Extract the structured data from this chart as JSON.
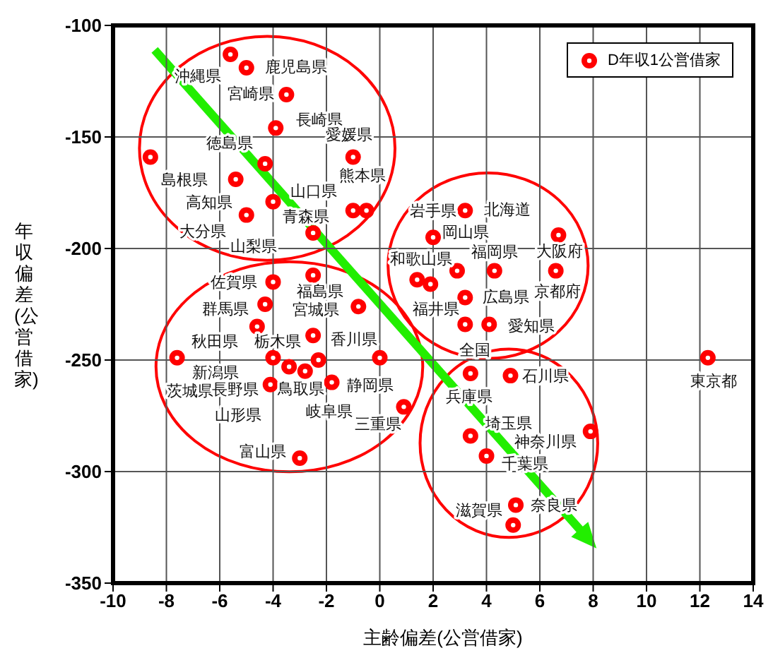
{
  "chart_data": {
    "type": "scatter",
    "xlabel": "主齢偏差(公営借家)",
    "ylabel": "年収偏差(公営借家)",
    "xlim": [
      -10,
      14
    ],
    "xticks": [
      -10,
      -8,
      -6,
      -4,
      -2,
      0,
      2,
      4,
      6,
      8,
      10,
      12,
      14
    ],
    "ylim": [
      -350,
      -100
    ],
    "yticks": [
      -350,
      -300,
      -250,
      -200,
      -150,
      -100
    ],
    "grid": true,
    "legend": "top right",
    "marker": "circle",
    "series": [
      {
        "name": "D年収1公営借家",
        "color": "#ff0000",
        "x": [
          -5.6,
          -5.0,
          -3.5,
          -3.9,
          -1.0,
          -4.3,
          -8.6,
          -5.4,
          -1.0,
          -0.5,
          -4.0,
          -5.0,
          -2.5,
          -4.0,
          -2.5,
          -4.3,
          -0.8,
          -4.6,
          -2.5,
          -7.6,
          -4.0,
          -2.3,
          0.0,
          -3.4,
          -2.8,
          -4.1,
          -1.8,
          0.9,
          -3.0,
          3.2,
          2.0,
          6.7,
          2.9,
          4.3,
          6.6,
          1.4,
          1.9,
          3.2,
          3.2,
          4.1,
          12.3,
          3.4,
          4.9,
          3.4,
          7.9,
          4.0,
          5.1,
          5.0
        ],
        "values": [
          -113,
          -119,
          -131,
          -146,
          -159,
          -162,
          -159,
          -169,
          -183,
          -183,
          -179,
          -185,
          -193,
          -215,
          -212,
          -225,
          -226,
          -235,
          -239,
          -249,
          -249,
          -250,
          -249,
          -253,
          -255,
          -261,
          -260,
          -271,
          -294,
          -183,
          -195,
          -194,
          -210,
          -210,
          -210,
          -214,
          -216,
          -222,
          -234,
          -234,
          -249,
          -256,
          -257,
          -284,
          -282,
          -293,
          -315,
          -324
        ]
      }
    ],
    "annotations": [
      {
        "text": "沖縄県",
        "x": -5.6,
        "y": -113
      },
      {
        "text": "鹿児島県",
        "x": -5.0,
        "y": -119
      },
      {
        "text": "宮崎県",
        "x": -3.5,
        "y": -131
      },
      {
        "text": "長崎県",
        "x": -3.9,
        "y": -146
      },
      {
        "text": "愛媛県",
        "x": -1.0,
        "y": -159
      },
      {
        "text": "徳島県",
        "x": -4.3,
        "y": -162
      },
      {
        "text": "島根県",
        "x": -8.6,
        "y": -159
      },
      {
        "text": "高知県",
        "x": -5.4,
        "y": -169
      },
      {
        "text": "山口県",
        "x": -1.0,
        "y": -183
      },
      {
        "text": "熊本県",
        "x": -0.5,
        "y": -183
      },
      {
        "text": "青森県",
        "x": -4.0,
        "y": -179
      },
      {
        "text": "大分県",
        "x": -5.0,
        "y": -185
      },
      {
        "text": "山梨県",
        "x": -2.5,
        "y": -193
      },
      {
        "text": "佐賀県",
        "x": -4.0,
        "y": -215
      },
      {
        "text": "福島県",
        "x": -2.5,
        "y": -212
      },
      {
        "text": "群馬県",
        "x": -4.3,
        "y": -225
      },
      {
        "text": "宮城県",
        "x": -0.8,
        "y": -226
      },
      {
        "text": "秋田県",
        "x": -4.6,
        "y": -235
      },
      {
        "text": "栃木県",
        "x": -2.5,
        "y": -239
      },
      {
        "text": "茨城県",
        "x": -7.6,
        "y": -249
      },
      {
        "text": "新潟県",
        "x": -4.0,
        "y": -249
      },
      {
        "text": "香川県",
        "x": -2.3,
        "y": -250
      },
      {
        "text": "静岡県",
        "x": 0.0,
        "y": -249
      },
      {
        "text": "長野県",
        "x": -3.4,
        "y": -253
      },
      {
        "text": "鳥取県",
        "x": -2.8,
        "y": -255
      },
      {
        "text": "山形県",
        "x": -4.1,
        "y": -261
      },
      {
        "text": "岐阜県",
        "x": -1.8,
        "y": -260
      },
      {
        "text": "三重県",
        "x": 0.9,
        "y": -271
      },
      {
        "text": "富山県",
        "x": -3.0,
        "y": -294
      },
      {
        "text": "北海道",
        "x": 3.2,
        "y": -183
      },
      {
        "text": "岩手県",
        "x": 2.0,
        "y": -195
      },
      {
        "text": "大阪府",
        "x": 6.7,
        "y": -194
      },
      {
        "text": "岡山県",
        "x": 2.9,
        "y": -210
      },
      {
        "text": "福岡県",
        "x": 4.3,
        "y": -210
      },
      {
        "text": "京都府",
        "x": 6.6,
        "y": -210
      },
      {
        "text": "和歌山県",
        "x": 1.4,
        "y": -214
      },
      {
        "text": "福井県",
        "x": 1.9,
        "y": -216
      },
      {
        "text": "広島県",
        "x": 3.2,
        "y": -222
      },
      {
        "text": "全国",
        "x": 3.2,
        "y": -234
      },
      {
        "text": "愛知県",
        "x": 4.1,
        "y": -234
      },
      {
        "text": "東京都",
        "x": 12.3,
        "y": -249
      },
      {
        "text": "兵庫県",
        "x": 3.4,
        "y": -256
      },
      {
        "text": "石川県",
        "x": 4.9,
        "y": -257
      },
      {
        "text": "埼玉県",
        "x": 3.4,
        "y": -284
      },
      {
        "text": "神奈川県",
        "x": 7.9,
        "y": -282
      },
      {
        "text": "千葉県",
        "x": 4.0,
        "y": -293
      },
      {
        "text": "奈良県",
        "x": 5.1,
        "y": -315
      },
      {
        "text": "滋賀県",
        "x": 5.0,
        "y": -324
      }
    ]
  }
}
